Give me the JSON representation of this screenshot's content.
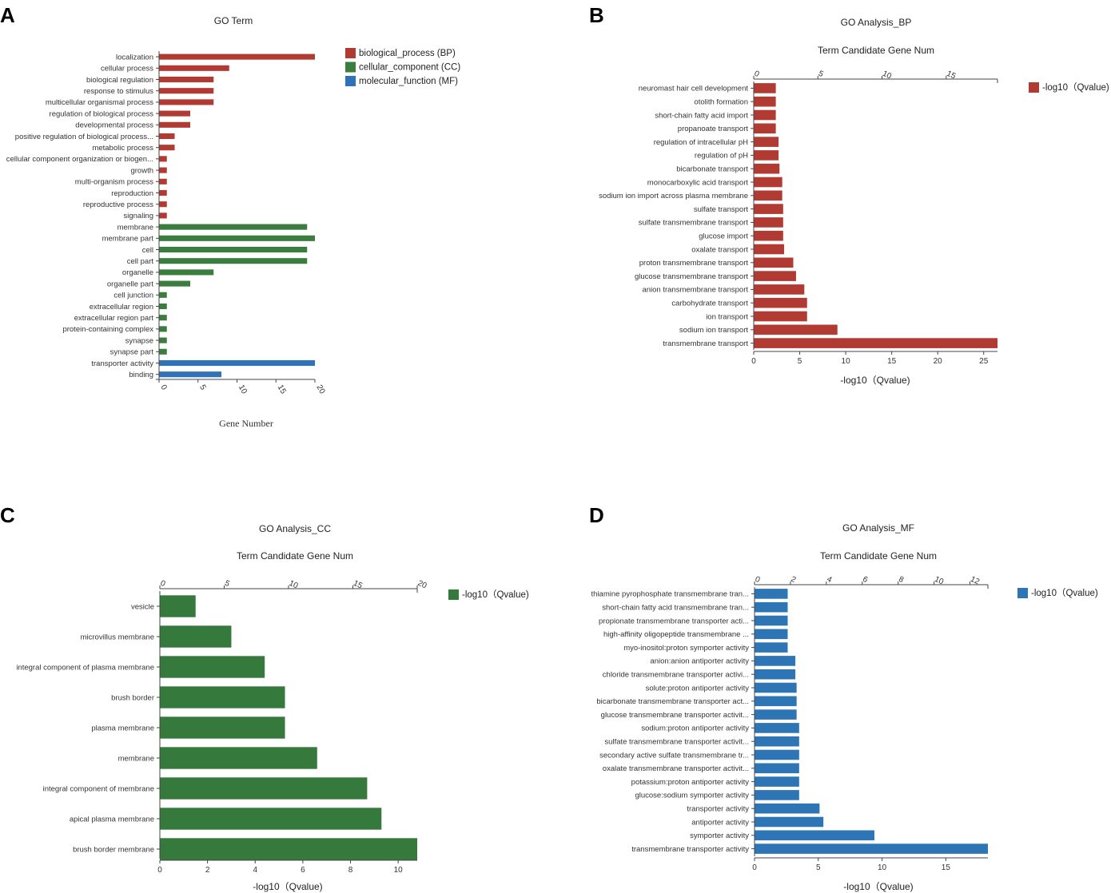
{
  "panel_labels": {
    "A": "A",
    "B": "B",
    "C": "C",
    "D": "D"
  },
  "colors": {
    "bp": "#b13a32",
    "cc": "#3b7d3e",
    "mf": "#2f72b8",
    "mf_bar": "#2e75b6",
    "cc_bar": "#357a3c",
    "axis": "#444444",
    "text": "#333333"
  },
  "chart_data": [
    {
      "panel": "A",
      "type": "bar",
      "orientation": "horizontal",
      "title": "GO Term",
      "xlabel": "Gene Number",
      "ylabel": "",
      "xlim": [
        0,
        20
      ],
      "xticks": [
        "0",
        "5",
        "10",
        "15",
        "20"
      ],
      "legend": [
        {
          "label": "biological_process (BP)",
          "color": "#b13a32"
        },
        {
          "label": "cellular_component (CC)",
          "color": "#3b7d3e"
        },
        {
          "label": "molecular_function (MF)",
          "color": "#2f72b8"
        }
      ],
      "categories": [
        "localization",
        "cellular process",
        "biological regulation",
        "response to stimulus",
        "multicellular organismal process",
        "regulation of biological process",
        "developmental process",
        "positive regulation of biological process...",
        "metabolic process",
        "cellular component organization or biogen...",
        "growth",
        "multi-organism process",
        "reproduction",
        "reproductive process",
        "signaling",
        "membrane",
        "membrane part",
        "cell",
        "cell part",
        "organelle",
        "organelle part",
        "cell junction",
        "extracellular region",
        "extracellular region part",
        "protein-containing complex",
        "synapse",
        "synapse part",
        "transporter activity",
        "binding"
      ],
      "values": [
        20,
        9,
        7,
        7,
        7,
        4,
        4,
        2,
        2,
        1,
        1,
        1,
        1,
        1,
        1,
        19,
        20,
        19,
        19,
        7,
        4,
        1,
        1,
        1,
        1,
        1,
        1,
        20,
        8
      ],
      "groups": [
        "BP",
        "BP",
        "BP",
        "BP",
        "BP",
        "BP",
        "BP",
        "BP",
        "BP",
        "BP",
        "BP",
        "BP",
        "BP",
        "BP",
        "BP",
        "CC",
        "CC",
        "CC",
        "CC",
        "CC",
        "CC",
        "CC",
        "CC",
        "CC",
        "CC",
        "CC",
        "CC",
        "MF",
        "MF"
      ]
    },
    {
      "panel": "B",
      "type": "bar",
      "orientation": "horizontal",
      "title": "GO Analysis_BP",
      "top_axis_label": "Term Candidate Gene Num",
      "xlabel": "-log10（Qvalue)",
      "legend": [
        {
          "label": "-log10（Qvalue)",
          "color": "#b13a32"
        }
      ],
      "xlim": [
        0,
        26.5
      ],
      "xticks": [
        "0",
        "5",
        "10",
        "15",
        "20",
        "25"
      ],
      "top_xlim": [
        0,
        19
      ],
      "top_xticks": [
        "0",
        "5",
        "10",
        "15"
      ],
      "categories": [
        "neuromast hair cell development",
        "otolith formation",
        "short-chain fatty acid import",
        "propanoate transport",
        "regulation of intracellular pH",
        "regulation of pH",
        "bicarbonate transport",
        "monocarboxylic acid transport",
        "sodium ion import across plasma membrane",
        "sulfate transport",
        "sulfate transmembrane transport",
        "glucose import",
        "oxalate transport",
        "proton transmembrane transport",
        "glucose transmembrane transport",
        "anion transmembrane transport",
        "carbohydrate transport",
        "ion transport",
        "sodium ion transport",
        "transmembrane transport"
      ],
      "values": [
        2.4,
        2.4,
        2.4,
        2.4,
        2.7,
        2.7,
        2.8,
        3.1,
        3.1,
        3.2,
        3.2,
        3.2,
        3.3,
        4.3,
        4.6,
        5.5,
        5.8,
        5.8,
        9.1,
        26.5
      ]
    },
    {
      "panel": "C",
      "type": "bar",
      "orientation": "horizontal",
      "title": "GO Analysis_CC",
      "top_axis_label": "Term Candidate Gene Num",
      "xlabel": "-log10（Qvalue)",
      "legend": [
        {
          "label": "-log10（Qvalue)",
          "color": "#357a3c"
        }
      ],
      "xlim": [
        0,
        10.8
      ],
      "xticks": [
        "0",
        "2",
        "4",
        "6",
        "8",
        "10"
      ],
      "top_xlim": [
        0,
        20
      ],
      "top_xticks": [
        "0",
        "5",
        "10",
        "15",
        "20"
      ],
      "categories": [
        "vesicle",
        "microvillus membrane",
        "integral component of plasma membrane",
        "brush border",
        "plasma membrane",
        "membrane",
        "integral component of membrane",
        "apical plasma membrane",
        "brush border membrane"
      ],
      "values": [
        1.5,
        3.0,
        4.4,
        5.25,
        5.25,
        6.6,
        8.7,
        9.3,
        10.8
      ]
    },
    {
      "panel": "D",
      "type": "bar",
      "orientation": "horizontal",
      "title": "GO Analysis_MF",
      "top_axis_label": "Term Candidate Gene Num",
      "xlabel": "-log10（Qvalue)",
      "legend": [
        {
          "label": "-log10（Qvalue)",
          "color": "#2e75b6"
        }
      ],
      "xlim": [
        0,
        18.3
      ],
      "xticks": [
        "0",
        "5",
        "10",
        "15"
      ],
      "top_xlim": [
        0,
        13
      ],
      "top_xticks": [
        "0",
        "2",
        "4",
        "6",
        "8",
        "10",
        "12"
      ],
      "categories": [
        "thiamine pyrophosphate transmembrane tran...",
        "short-chain fatty acid transmembrane tran...",
        "propionate transmembrane transporter acti...",
        "high-affinity oligopeptide transmembrane ...",
        "myo-inositol:proton symporter activity",
        "anion:anion antiporter activity",
        "chloride transmembrane transporter activi...",
        "solute:proton antiporter activity",
        "bicarbonate transmembrane transporter act...",
        "glucose transmembrane transporter activit...",
        "sodium:proton antiporter activity",
        "sulfate transmembrane transporter activit...",
        "secondary active sulfate transmembrane tr...",
        "oxalate transmembrane transporter activit...",
        "potassium:proton antiporter activity",
        "glucose:sodium symporter activity",
        "transporter activity",
        "antiporter activity",
        "symporter activity",
        "transmembrane transporter activity"
      ],
      "values": [
        2.6,
        2.6,
        2.6,
        2.6,
        2.6,
        3.2,
        3.2,
        3.3,
        3.3,
        3.3,
        3.5,
        3.5,
        3.5,
        3.5,
        3.5,
        3.5,
        5.1,
        5.4,
        9.4,
        18.3
      ]
    }
  ]
}
